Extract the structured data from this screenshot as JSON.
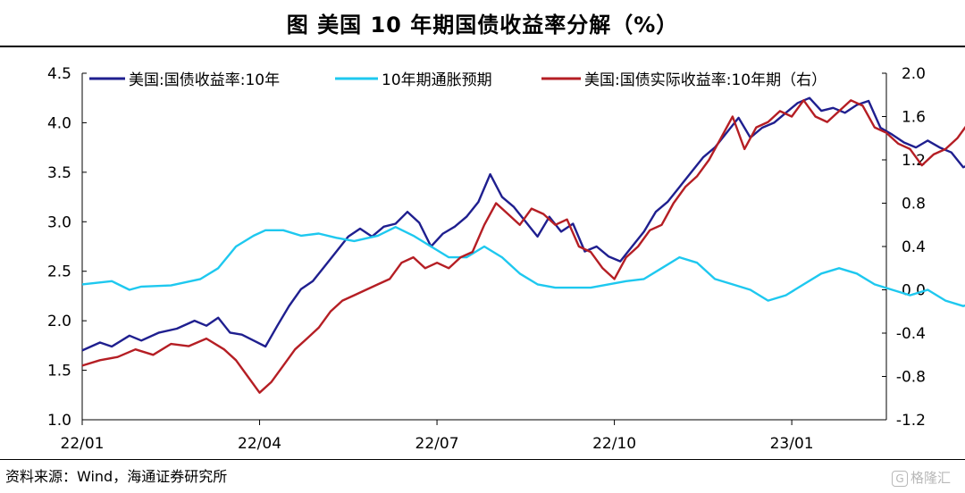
{
  "chart_data": {
    "type": "line",
    "title": "图   美国 10 年期国债收益率分解（%）",
    "left_axis": {
      "ylim": [
        1.0,
        4.5
      ],
      "ticks": [
        "1.0",
        "1.5",
        "2.0",
        "2.5",
        "3.0",
        "3.5",
        "4.0",
        "4.5"
      ]
    },
    "right_axis": {
      "ylim": [
        -1.2,
        2.0
      ],
      "ticks": [
        "-1.2",
        "-0.8",
        "-0.4",
        "0.0",
        "0.4",
        "0.8",
        "1.2",
        "1.6",
        "2.0"
      ]
    },
    "x_axis": {
      "labels": [
        "22/01",
        "22/04",
        "22/07",
        "22/10",
        "23/01"
      ],
      "label_months": [
        0,
        3,
        6,
        9,
        12
      ],
      "range_months": [
        0,
        13.6
      ]
    },
    "legend_position": "top",
    "series": [
      {
        "name": "美国:国债收益率:10年",
        "axis": "left",
        "color": "#1f1f8f",
        "points": [
          [
            0.0,
            1.7
          ],
          [
            0.3,
            1.78
          ],
          [
            0.5,
            1.74
          ],
          [
            0.8,
            1.85
          ],
          [
            1.0,
            1.8
          ],
          [
            1.3,
            1.88
          ],
          [
            1.6,
            1.92
          ],
          [
            1.9,
            2.0
          ],
          [
            2.1,
            1.95
          ],
          [
            2.3,
            2.03
          ],
          [
            2.5,
            1.88
          ],
          [
            2.7,
            1.86
          ],
          [
            2.9,
            1.8
          ],
          [
            3.1,
            1.74
          ],
          [
            3.3,
            1.95
          ],
          [
            3.5,
            2.15
          ],
          [
            3.7,
            2.32
          ],
          [
            3.9,
            2.4
          ],
          [
            4.1,
            2.55
          ],
          [
            4.3,
            2.7
          ],
          [
            4.5,
            2.85
          ],
          [
            4.7,
            2.93
          ],
          [
            4.9,
            2.85
          ],
          [
            5.1,
            2.95
          ],
          [
            5.3,
            2.98
          ],
          [
            5.5,
            3.1
          ],
          [
            5.7,
            2.99
          ],
          [
            5.9,
            2.75
          ],
          [
            6.1,
            2.88
          ],
          [
            6.3,
            2.95
          ],
          [
            6.5,
            3.05
          ],
          [
            6.7,
            3.2
          ],
          [
            6.9,
            3.48
          ],
          [
            7.1,
            3.25
          ],
          [
            7.3,
            3.15
          ],
          [
            7.5,
            3.0
          ],
          [
            7.7,
            2.85
          ],
          [
            7.9,
            3.05
          ],
          [
            8.1,
            2.9
          ],
          [
            8.3,
            2.98
          ],
          [
            8.5,
            2.7
          ],
          [
            8.7,
            2.75
          ],
          [
            8.9,
            2.65
          ],
          [
            9.1,
            2.6
          ],
          [
            9.3,
            2.75
          ],
          [
            9.5,
            2.9
          ],
          [
            9.7,
            3.1
          ],
          [
            9.9,
            3.2
          ],
          [
            10.1,
            3.35
          ],
          [
            10.3,
            3.5
          ],
          [
            10.5,
            3.65
          ],
          [
            10.7,
            3.75
          ],
          [
            10.9,
            3.9
          ],
          [
            11.1,
            4.05
          ],
          [
            11.3,
            3.85
          ],
          [
            11.5,
            3.95
          ],
          [
            11.7,
            4.0
          ],
          [
            11.9,
            4.1
          ],
          [
            12.1,
            4.2
          ],
          [
            12.3,
            4.25
          ],
          [
            12.5,
            4.12
          ],
          [
            12.7,
            4.15
          ],
          [
            12.9,
            4.1
          ],
          [
            13.1,
            4.18
          ],
          [
            13.3,
            4.22
          ],
          [
            13.5,
            3.95
          ],
          [
            13.7,
            3.88
          ],
          [
            13.9,
            3.8
          ],
          [
            14.1,
            3.75
          ],
          [
            14.3,
            3.82
          ],
          [
            14.5,
            3.75
          ],
          [
            14.7,
            3.7
          ],
          [
            14.9,
            3.55
          ],
          [
            15.1,
            3.6
          ],
          [
            15.3,
            3.45
          ],
          [
            15.5,
            3.65
          ],
          [
            15.7,
            3.55
          ],
          [
            15.9,
            3.7
          ],
          [
            16.1,
            3.5
          ],
          [
            16.3,
            3.48
          ]
        ]
      },
      {
        "name": "10年期通胀预期",
        "axis": "right",
        "color": "#1ec8ef",
        "points": [
          [
            0.0,
            0.05
          ],
          [
            0.5,
            0.08
          ],
          [
            0.8,
            0.0
          ],
          [
            1.0,
            0.03
          ],
          [
            1.5,
            0.04
          ],
          [
            2.0,
            0.1
          ],
          [
            2.3,
            0.2
          ],
          [
            2.6,
            0.4
          ],
          [
            2.9,
            0.5
          ],
          [
            3.1,
            0.55
          ],
          [
            3.4,
            0.55
          ],
          [
            3.7,
            0.5
          ],
          [
            4.0,
            0.52
          ],
          [
            4.3,
            0.48
          ],
          [
            4.6,
            0.45
          ],
          [
            5.0,
            0.5
          ],
          [
            5.3,
            0.58
          ],
          [
            5.6,
            0.5
          ],
          [
            5.9,
            0.4
          ],
          [
            6.2,
            0.3
          ],
          [
            6.5,
            0.3
          ],
          [
            6.8,
            0.4
          ],
          [
            7.1,
            0.3
          ],
          [
            7.4,
            0.15
          ],
          [
            7.7,
            0.05
          ],
          [
            8.0,
            0.02
          ],
          [
            8.3,
            0.02
          ],
          [
            8.6,
            0.02
          ],
          [
            8.9,
            0.05
          ],
          [
            9.2,
            0.08
          ],
          [
            9.5,
            0.1
          ],
          [
            9.8,
            0.2
          ],
          [
            10.1,
            0.3
          ],
          [
            10.4,
            0.25
          ],
          [
            10.7,
            0.1
          ],
          [
            11.0,
            0.05
          ],
          [
            11.3,
            0.0
          ],
          [
            11.6,
            -0.1
          ],
          [
            11.9,
            -0.05
          ],
          [
            12.2,
            0.05
          ],
          [
            12.5,
            0.15
          ],
          [
            12.8,
            0.2
          ],
          [
            13.1,
            0.15
          ],
          [
            13.4,
            0.05
          ],
          [
            13.7,
            0.0
          ],
          [
            14.0,
            -0.05
          ],
          [
            14.3,
            0.0
          ],
          [
            14.6,
            -0.1
          ],
          [
            14.9,
            -0.15
          ],
          [
            15.2,
            -0.1
          ],
          [
            15.5,
            -0.05
          ],
          [
            15.8,
            -0.12
          ],
          [
            16.1,
            -0.1
          ],
          [
            16.3,
            -0.05
          ]
        ]
      },
      {
        "name": "美国:国债实际收益率:10年期（右）",
        "axis": "right",
        "color": "#b51e24",
        "points": [
          [
            0.0,
            -0.7
          ],
          [
            0.3,
            -0.65
          ],
          [
            0.6,
            -0.62
          ],
          [
            0.9,
            -0.55
          ],
          [
            1.2,
            -0.6
          ],
          [
            1.5,
            -0.5
          ],
          [
            1.8,
            -0.52
          ],
          [
            2.1,
            -0.45
          ],
          [
            2.4,
            -0.55
          ],
          [
            2.6,
            -0.65
          ],
          [
            2.8,
            -0.8
          ],
          [
            3.0,
            -0.95
          ],
          [
            3.2,
            -0.85
          ],
          [
            3.4,
            -0.7
          ],
          [
            3.6,
            -0.55
          ],
          [
            3.8,
            -0.45
          ],
          [
            4.0,
            -0.35
          ],
          [
            4.2,
            -0.2
          ],
          [
            4.4,
            -0.1
          ],
          [
            4.6,
            -0.05
          ],
          [
            4.8,
            0.0
          ],
          [
            5.0,
            0.05
          ],
          [
            5.2,
            0.1
          ],
          [
            5.4,
            0.25
          ],
          [
            5.6,
            0.3
          ],
          [
            5.8,
            0.2
          ],
          [
            6.0,
            0.25
          ],
          [
            6.2,
            0.2
          ],
          [
            6.4,
            0.3
          ],
          [
            6.6,
            0.35
          ],
          [
            6.8,
            0.6
          ],
          [
            7.0,
            0.8
          ],
          [
            7.2,
            0.7
          ],
          [
            7.4,
            0.6
          ],
          [
            7.6,
            0.75
          ],
          [
            7.8,
            0.7
          ],
          [
            8.0,
            0.6
          ],
          [
            8.2,
            0.65
          ],
          [
            8.4,
            0.4
          ],
          [
            8.6,
            0.35
          ],
          [
            8.8,
            0.2
          ],
          [
            9.0,
            0.1
          ],
          [
            9.2,
            0.3
          ],
          [
            9.4,
            0.4
          ],
          [
            9.6,
            0.55
          ],
          [
            9.8,
            0.6
          ],
          [
            10.0,
            0.8
          ],
          [
            10.2,
            0.95
          ],
          [
            10.4,
            1.05
          ],
          [
            10.6,
            1.2
          ],
          [
            10.8,
            1.4
          ],
          [
            11.0,
            1.6
          ],
          [
            11.2,
            1.3
          ],
          [
            11.4,
            1.5
          ],
          [
            11.6,
            1.55
          ],
          [
            11.8,
            1.65
          ],
          [
            12.0,
            1.6
          ],
          [
            12.2,
            1.75
          ],
          [
            12.4,
            1.6
          ],
          [
            12.6,
            1.55
          ],
          [
            12.8,
            1.65
          ],
          [
            13.0,
            1.75
          ],
          [
            13.2,
            1.7
          ],
          [
            13.4,
            1.5
          ],
          [
            13.6,
            1.45
          ],
          [
            13.8,
            1.35
          ],
          [
            14.0,
            1.3
          ],
          [
            14.2,
            1.15
          ],
          [
            14.4,
            1.25
          ],
          [
            14.6,
            1.3
          ],
          [
            14.8,
            1.4
          ],
          [
            15.0,
            1.55
          ],
          [
            15.2,
            1.6
          ],
          [
            15.4,
            1.55
          ],
          [
            15.6,
            1.4
          ],
          [
            15.8,
            1.3
          ],
          [
            16.0,
            1.25
          ],
          [
            16.2,
            1.2
          ]
        ]
      }
    ]
  },
  "source": "资料来源：Wind，海通证券研究所",
  "watermark": {
    "icon": "G",
    "text": "格隆汇"
  }
}
